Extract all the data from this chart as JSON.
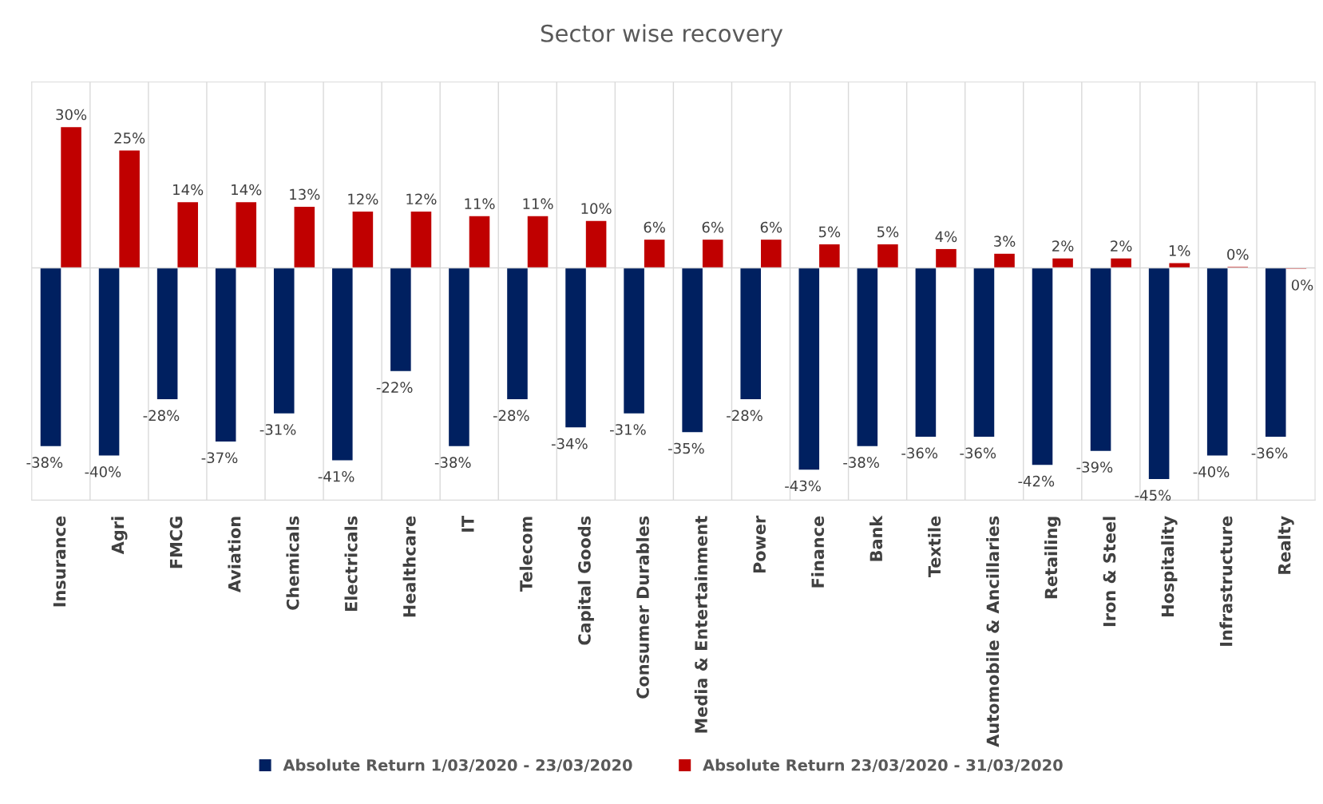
{
  "chart_data": {
    "type": "bar",
    "title": "Sector wise recovery",
    "categories": [
      "Insurance",
      "Agri",
      "FMCG",
      "Aviation",
      "Chemicals",
      "Electricals",
      "Healthcare",
      "IT",
      "Telecom",
      "Capital Goods",
      "Consumer Durables",
      "Media & Entertainment",
      "Power",
      "Finance",
      "Bank",
      "Textile",
      "Automobile & Ancillaries",
      "Retailing",
      "Iron & Steel",
      "Hospitality",
      "Infrastructure",
      "Realty"
    ],
    "series": [
      {
        "name": "Absolute Return 1/03/2020 - 23/03/2020",
        "color": "#002060",
        "values": [
          -38,
          -40,
          -28,
          -37,
          -31,
          -41,
          -22,
          -38,
          -28,
          -34,
          -31,
          -35,
          -28,
          -43,
          -38,
          -36,
          -36,
          -42,
          -39,
          -45,
          -40,
          -36
        ],
        "value_labels": [
          "-38%",
          "-40%",
          "-28%",
          "-37%",
          "-31%",
          "-41%",
          "-22%",
          "-38%",
          "-28%",
          "-34%",
          "-31%",
          "-35%",
          "-28%",
          "-43%",
          "-38%",
          "-36%",
          "-36%",
          "-42%",
          "-39%",
          "-45%",
          "-40%",
          "-36%"
        ]
      },
      {
        "name": "Absolute Return 23/03/2020 - 31/03/2020",
        "color": "#c00000",
        "values": [
          30,
          25,
          14,
          14,
          13,
          12,
          12,
          11,
          11,
          10,
          6,
          6,
          6,
          5,
          5,
          4,
          3,
          2,
          2,
          1,
          0.2,
          -0.2
        ],
        "value_labels": [
          "30%",
          "25%",
          "14%",
          "14%",
          "13%",
          "12%",
          "12%",
          "11%",
          "11%",
          "10%",
          "6%",
          "6%",
          "6%",
          "5%",
          "5%",
          "4%",
          "3%",
          "2%",
          "2%",
          "1%",
          "0%",
          "0%"
        ]
      }
    ],
    "grid": "x",
    "legend": "bottom"
  }
}
